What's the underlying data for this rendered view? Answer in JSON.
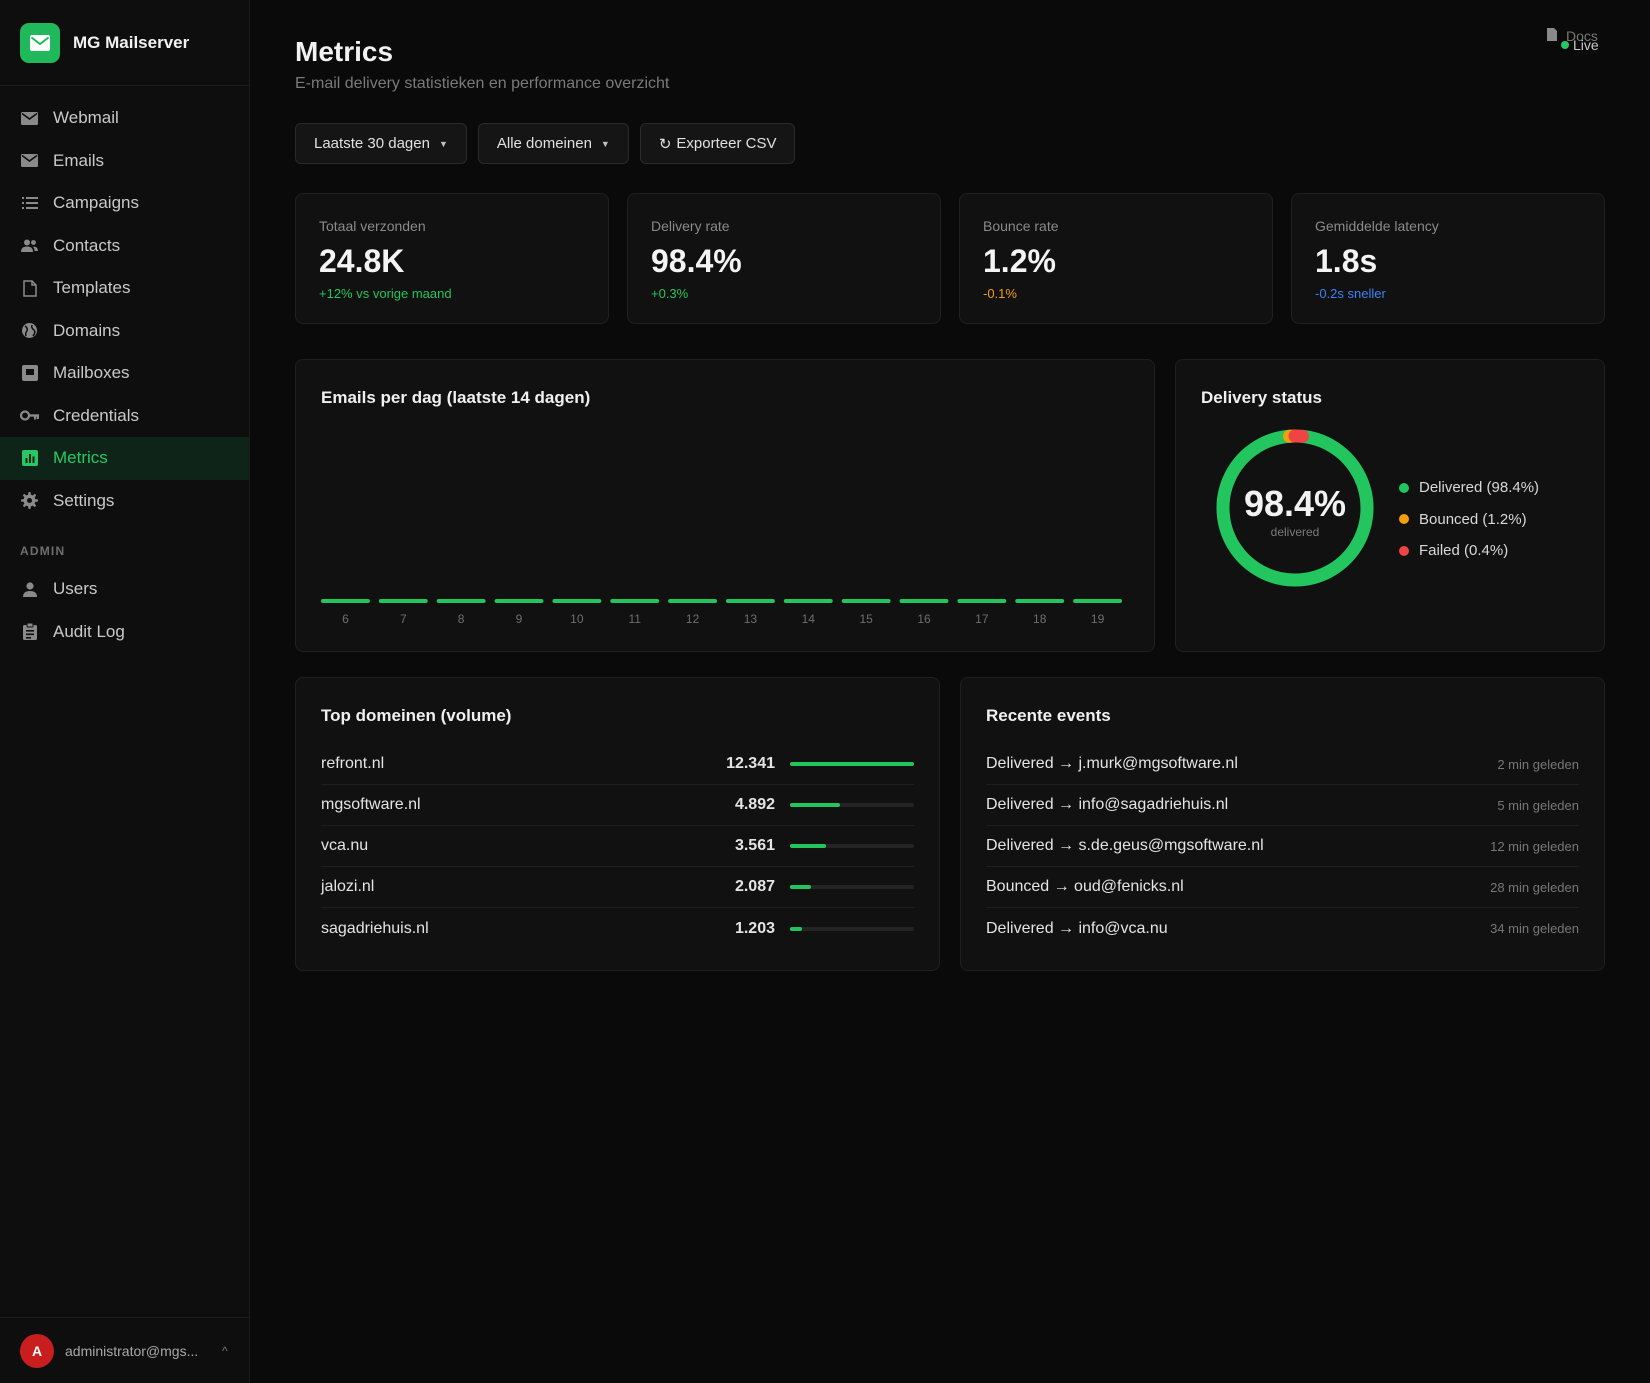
{
  "app": {
    "name": "MG Mailserver"
  },
  "sidebar": {
    "items": [
      {
        "label": "Webmail",
        "icon": "envelope-icon"
      },
      {
        "label": "Emails",
        "icon": "envelope-icon"
      },
      {
        "label": "Campaigns",
        "icon": "list-icon"
      },
      {
        "label": "Contacts",
        "icon": "users-icon"
      },
      {
        "label": "Templates",
        "icon": "file-icon"
      },
      {
        "label": "Domains",
        "icon": "globe-icon"
      },
      {
        "label": "Mailboxes",
        "icon": "inbox-icon"
      },
      {
        "label": "Credentials",
        "icon": "key-icon"
      },
      {
        "label": "Metrics",
        "icon": "chart-icon",
        "active": true
      },
      {
        "label": "Settings",
        "icon": "gear-icon"
      }
    ],
    "admin_heading": "ADMIN",
    "admin_items": [
      {
        "label": "Users",
        "icon": "user-icon"
      },
      {
        "label": "Audit Log",
        "icon": "clipboard-icon"
      }
    ],
    "user": {
      "initial": "A",
      "email": "administrator@mgs...",
      "caret": "^"
    }
  },
  "header": {
    "title": "Metrics",
    "subtitle": "E-mail delivery statistieken en performance overzicht",
    "docs_label": "Docs",
    "live_label": "Live"
  },
  "controls": {
    "period": "Laatste 30 dagen",
    "domain_filter": "Alle domeinen",
    "export": "Exporteer CSV"
  },
  "kpis": [
    {
      "label": "Totaal verzonden",
      "value": "24.8K",
      "delta": "+12% vs vorige maand",
      "delta_color": "#22c55e"
    },
    {
      "label": "Delivery rate",
      "value": "98.4%",
      "delta": "+0.3%",
      "delta_color": "#22c55e"
    },
    {
      "label": "Bounce rate",
      "value": "1.2%",
      "delta": "-0.1%",
      "delta_color": "#f59e0b"
    },
    {
      "label": "Gemiddelde latency",
      "value": "1.8s",
      "delta": "-0.2s sneller",
      "delta_color": "#3b82f6"
    }
  ],
  "chart_data": [
    {
      "type": "bar",
      "title": "Emails per dag (laatste 14 dagen)",
      "categories": [
        "6",
        "7",
        "8",
        "9",
        "10",
        "11",
        "12",
        "13",
        "14",
        "15",
        "16",
        "17",
        "18",
        "19"
      ],
      "values": [
        0,
        0,
        0,
        0,
        0,
        0,
        0,
        0,
        0,
        0,
        0,
        0,
        0,
        0
      ],
      "color": "#22c55e",
      "grid": false
    },
    {
      "type": "pie",
      "title": "Delivery status",
      "center_value": "98.4%",
      "center_label": "delivered",
      "slices": [
        {
          "name": "Delivered",
          "value": 98.4,
          "label": "Delivered (98.4%)",
          "color": "#22c55e"
        },
        {
          "name": "Bounced",
          "value": 1.2,
          "label": "Bounced (1.2%)",
          "color": "#f59e0b"
        },
        {
          "name": "Failed",
          "value": 0.4,
          "label": "Failed (0.4%)",
          "color": "#ef4444"
        }
      ]
    }
  ],
  "top_domains": {
    "title": "Top domeinen (volume)",
    "rows": [
      {
        "domain": "refront.nl",
        "count": "12.341",
        "share": 1.0
      },
      {
        "domain": "mgsoftware.nl",
        "count": "4.892",
        "share": 0.4
      },
      {
        "domain": "vca.nu",
        "count": "3.561",
        "share": 0.29
      },
      {
        "domain": "jalozi.nl",
        "count": "2.087",
        "share": 0.17
      },
      {
        "domain": "sagadriehuis.nl",
        "count": "1.203",
        "share": 0.1
      }
    ]
  },
  "recent_events": {
    "title": "Recente events",
    "rows": [
      {
        "text": "Delivered → j.murk@mgsoftware.nl",
        "time": "2 min geleden"
      },
      {
        "text": "Delivered → info@sagadriehuis.nl",
        "time": "5 min geleden"
      },
      {
        "text": "Delivered → s.de.geus@mgsoftware.nl",
        "time": "12 min geleden"
      },
      {
        "text": "Bounced → oud@fenicks.nl",
        "time": "28 min geleden"
      },
      {
        "text": "Delivered → info@vca.nu",
        "time": "34 min geleden"
      }
    ]
  }
}
